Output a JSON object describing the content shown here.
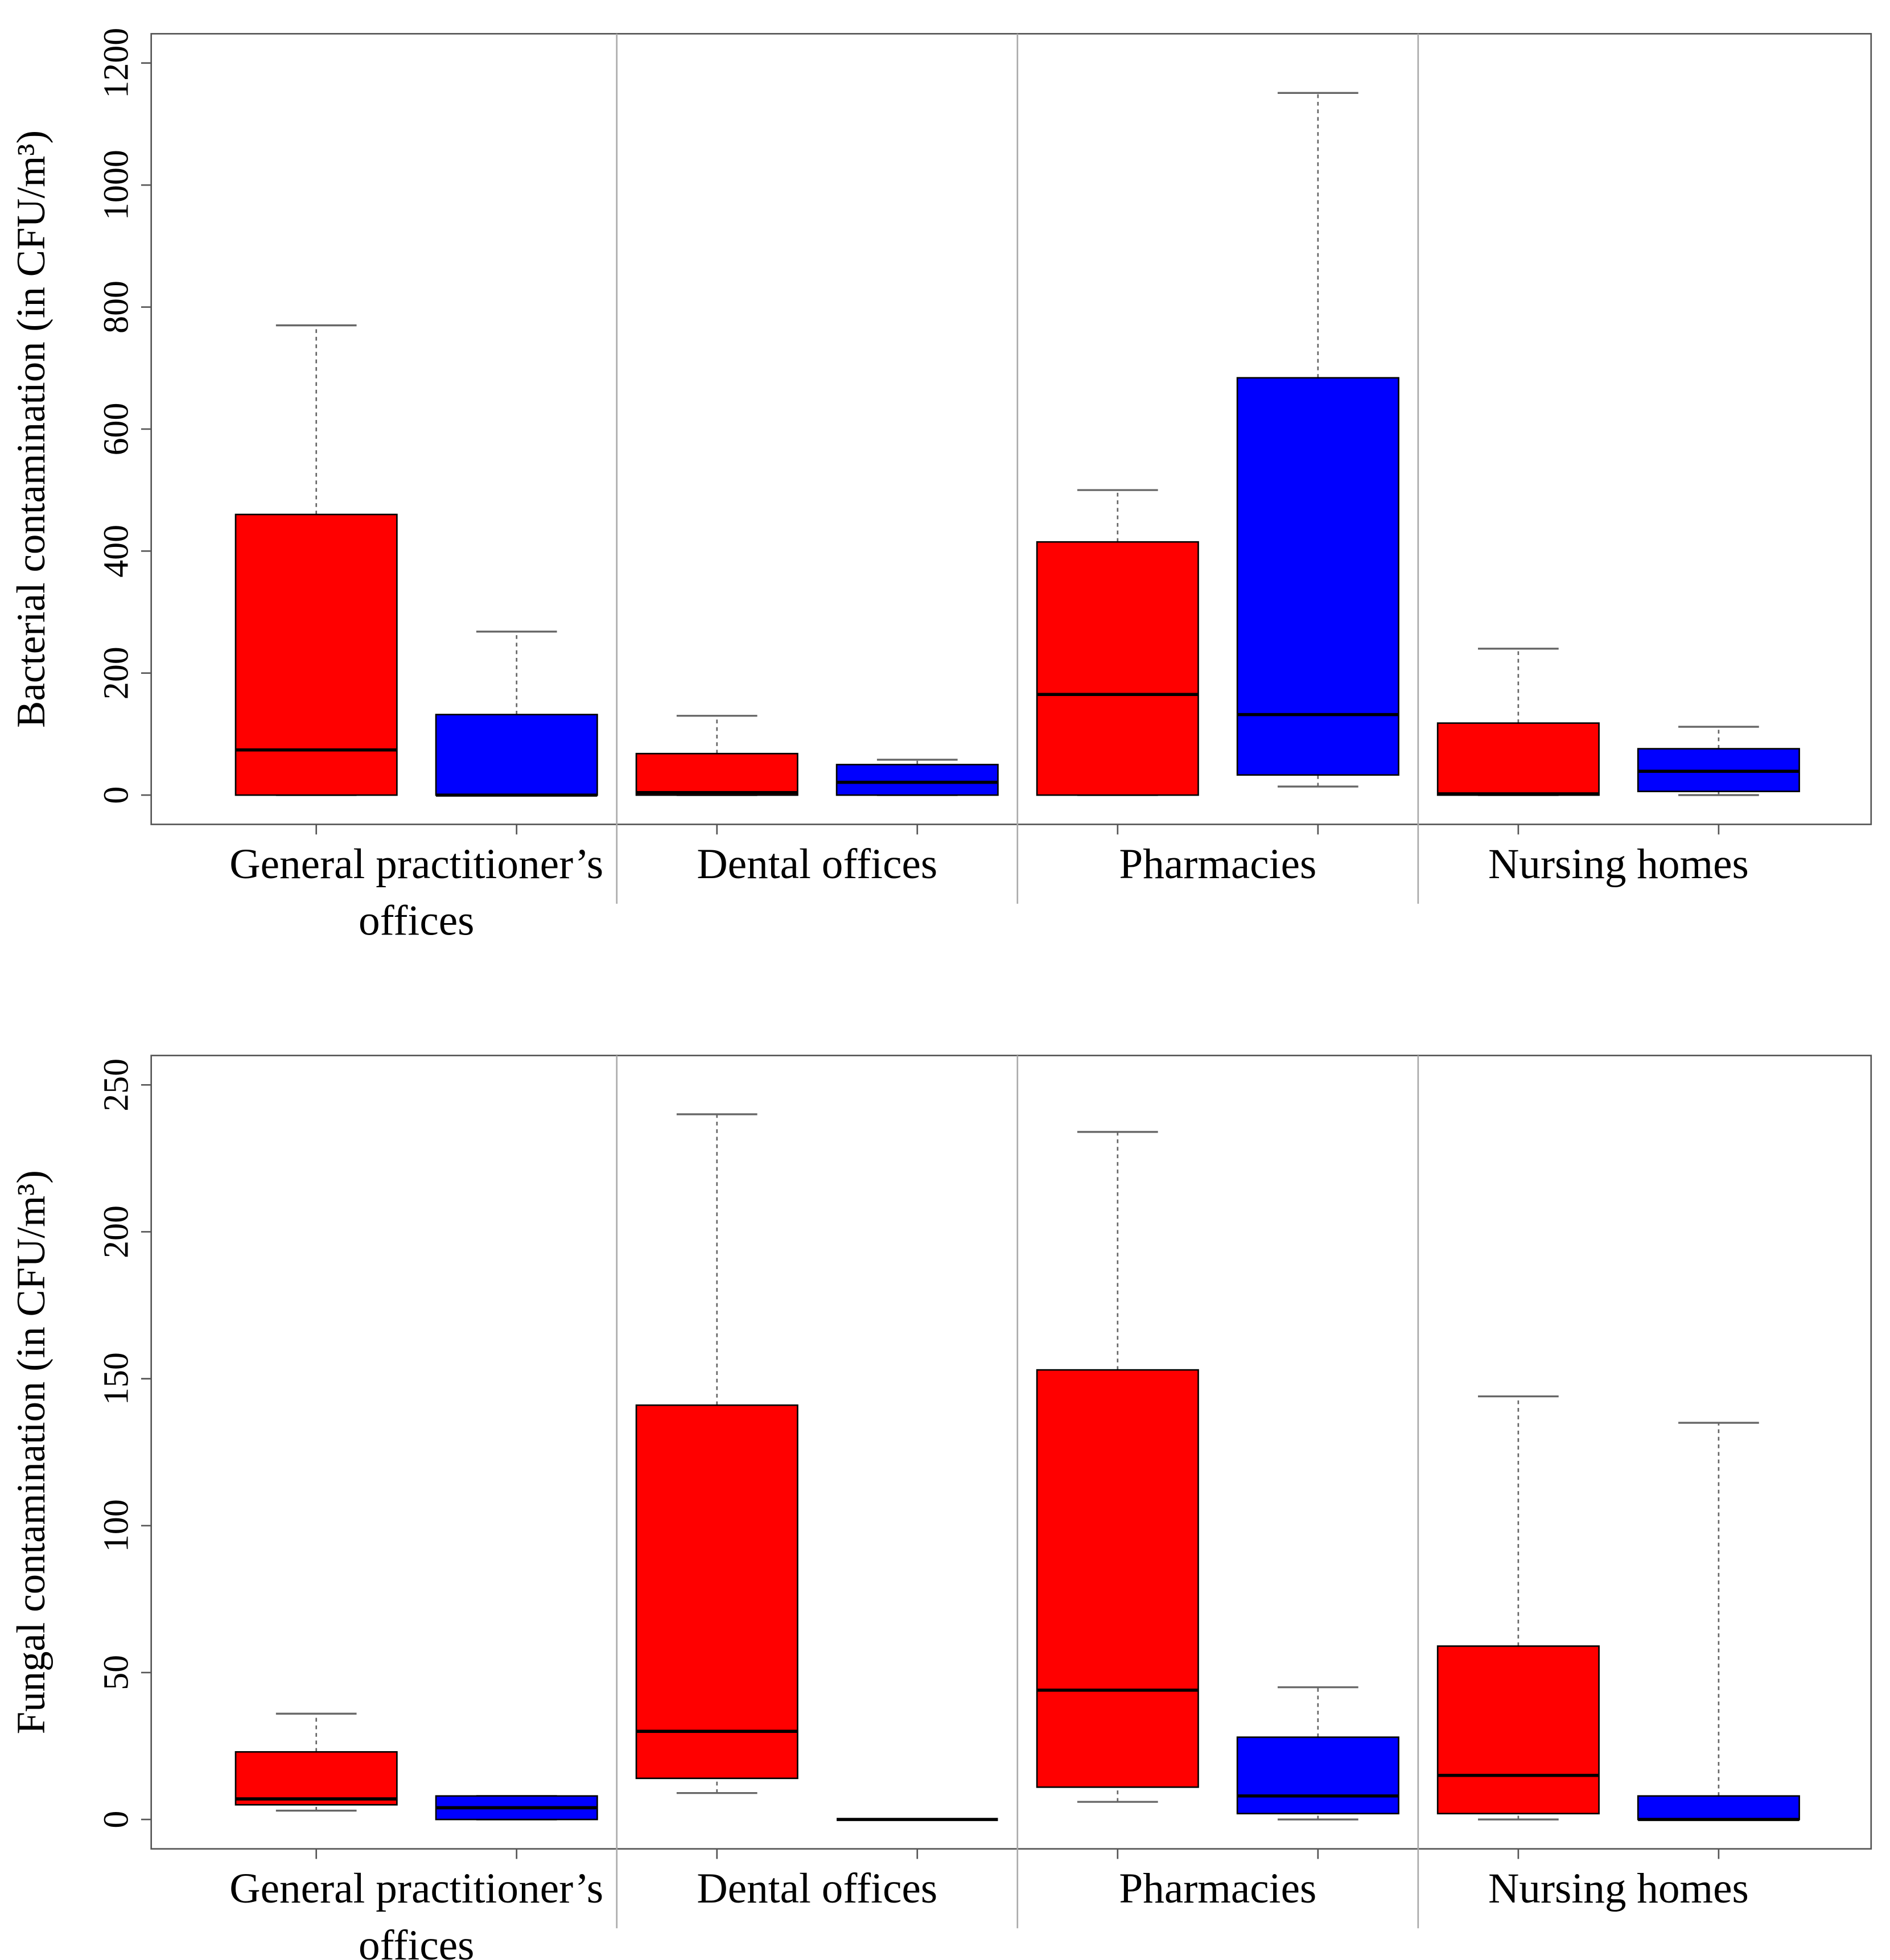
{
  "chart_data": [
    {
      "type": "box",
      "ylabel": "Bacterial contamination (in CFU/m³)",
      "categories": [
        "General practitioner’s offices",
        "Dental offices",
        "Pharmacies",
        "Nursing homes"
      ],
      "ylim": [
        0,
        1200
      ],
      "yticks": [
        0,
        200,
        400,
        600,
        800,
        1000,
        1200
      ],
      "series": [
        {
          "color": "#ff0000",
          "values": [
            [
              0,
              0,
              74,
              460,
              770
            ],
            [
              0,
              0,
              4,
              68,
              130
            ],
            [
              0,
              0,
              165,
              415,
              500
            ],
            [
              0,
              0,
              2,
              118,
              240
            ]
          ]
        },
        {
          "color": "#0000ff",
          "values": [
            [
              0,
              0,
              0,
              132,
              268
            ],
            [
              0,
              0,
              21,
              50,
              58
            ],
            [
              14,
              33,
              132,
              684,
              1151
            ],
            [
              0,
              6,
              39,
              76,
              112
            ]
          ]
        }
      ]
    },
    {
      "type": "box",
      "ylabel": "Fungal contamination (in CFU/m³)",
      "categories": [
        "General practitioner’s offices",
        "Dental offices",
        "Pharmacies",
        "Nursing homes"
      ],
      "ylim": [
        0,
        250
      ],
      "yticks": [
        0,
        50,
        100,
        150,
        200,
        250
      ],
      "series": [
        {
          "color": "#ff0000",
          "values": [
            [
              3,
              5,
              7,
              23,
              36
            ],
            [
              9,
              14,
              30,
              141,
              240
            ],
            [
              6,
              11,
              44,
              153,
              234
            ],
            [
              0,
              2,
              15,
              59,
              144
            ]
          ]
        },
        {
          "color": "#0000ff",
          "values": [
            [
              0,
              0,
              4,
              8,
              8
            ],
            [
              0,
              0,
              0,
              0,
              0
            ],
            [
              0,
              2,
              8,
              28,
              45
            ],
            [
              0,
              0,
              0,
              8,
              135
            ]
          ]
        }
      ]
    }
  ]
}
